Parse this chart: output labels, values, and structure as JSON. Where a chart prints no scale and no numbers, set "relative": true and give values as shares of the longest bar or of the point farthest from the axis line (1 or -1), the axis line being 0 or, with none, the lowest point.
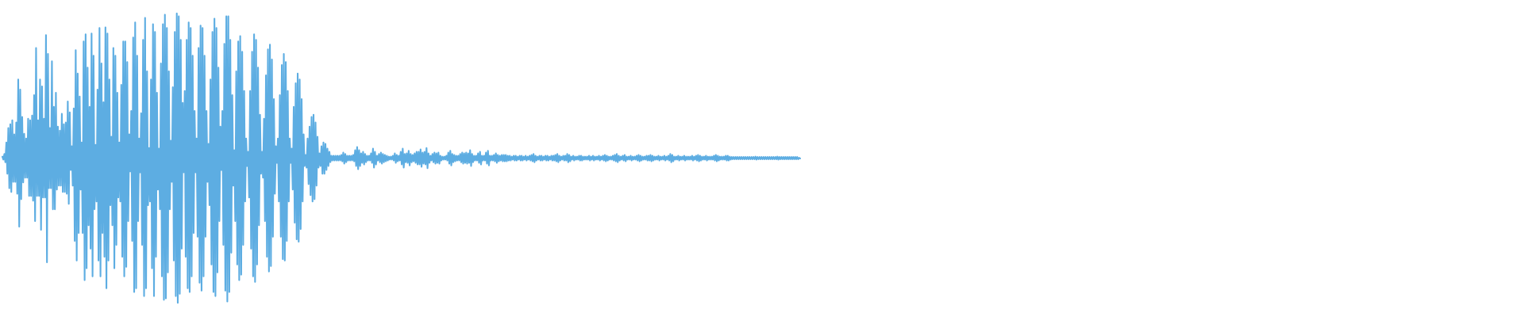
{
  "chart_data": {
    "type": "line",
    "relative": true,
    "color": "#5dade2",
    "categories": [
      null,
      null,
      null,
      null,
      null,
      null,
      null,
      null,
      null,
      null,
      null,
      null,
      null,
      null,
      null,
      null,
      null,
      null,
      null,
      null,
      null,
      null,
      null,
      null,
      null,
      null,
      null,
      null,
      null,
      null,
      null,
      null,
      null,
      null,
      null,
      null,
      null,
      null,
      null,
      null,
      null,
      null,
      null,
      null,
      null,
      null,
      null,
      null,
      null,
      null,
      null,
      null,
      null,
      null,
      null,
      null,
      null,
      null,
      null,
      null,
      null,
      null,
      null,
      null,
      null,
      null,
      null,
      null,
      null,
      null,
      null,
      null,
      null,
      null,
      null,
      null,
      null,
      null,
      null,
      null,
      null,
      null,
      null,
      null,
      null,
      null,
      null,
      null,
      null,
      null,
      null,
      null,
      null,
      null,
      null,
      null,
      null,
      null,
      null,
      null,
      null,
      null,
      null,
      null,
      null,
      null,
      null,
      null,
      null,
      null,
      null,
      null,
      null,
      null,
      null,
      null,
      null,
      null,
      null,
      null,
      null,
      null,
      null,
      null,
      null,
      null,
      null,
      null,
      null,
      null,
      null,
      null,
      null,
      null,
      null,
      null,
      null,
      null,
      null,
      null,
      null,
      null,
      null,
      null,
      null,
      null,
      null,
      null,
      null,
      null,
      null,
      null,
      null,
      null,
      null,
      null,
      null,
      null,
      null,
      null,
      null,
      null,
      null,
      null,
      null,
      null,
      null,
      null,
      null,
      null,
      null,
      null,
      null,
      null,
      null,
      null,
      null,
      null,
      null,
      null,
      null,
      null,
      null,
      null,
      null,
      null,
      null,
      null,
      null,
      null,
      null,
      null,
      null,
      null,
      null,
      null,
      null,
      null,
      null,
      null,
      null,
      null,
      null,
      null,
      null,
      null,
      null,
      null,
      null,
      null,
      null,
      null,
      null,
      null,
      null,
      null,
      null,
      null,
      null,
      null,
      null,
      null,
      null,
      null,
      null,
      null,
      null,
      null,
      null,
      null,
      null,
      null,
      null,
      null,
      null,
      null,
      null,
      null,
      null,
      null,
      null,
      null,
      null,
      null,
      null,
      null,
      null,
      null,
      null,
      null,
      null,
      null,
      null,
      null,
      null,
      null,
      null,
      null,
      null,
      null,
      null,
      null,
      null,
      null,
      null,
      null,
      null,
      null,
      null,
      null,
      null,
      null,
      null,
      null,
      null,
      null,
      null,
      null,
      null,
      null,
      null,
      null,
      null,
      null,
      null,
      null,
      null,
      null,
      null,
      null,
      null,
      null,
      null,
      null,
      null,
      null,
      null,
      null,
      null,
      null,
      null,
      null,
      null,
      null,
      null,
      null,
      null,
      null,
      null,
      null,
      null,
      null,
      null,
      null,
      null,
      null,
      null,
      null,
      null,
      null,
      null,
      null,
      null,
      null,
      null,
      null,
      null,
      null,
      null,
      null,
      null,
      null,
      null,
      null,
      null,
      null,
      null,
      null,
      null,
      null,
      null,
      null,
      null,
      null,
      null,
      null,
      null,
      null,
      null,
      null,
      null,
      null,
      null,
      null,
      null,
      null,
      null,
      null,
      null,
      null,
      null,
      null,
      null,
      null,
      null,
      null,
      null,
      null,
      null,
      null,
      null,
      null,
      null,
      null,
      null,
      null,
      null,
      null,
      null,
      null,
      null,
      null,
      null,
      null,
      null,
      null,
      null,
      null,
      null,
      null,
      null,
      null,
      null,
      null,
      null,
      null,
      null,
      null,
      null,
      null,
      null,
      null,
      null,
      null,
      null,
      null,
      null,
      null,
      null,
      null,
      null,
      null,
      null,
      null,
      null,
      null,
      null,
      null,
      null,
      null,
      null,
      null,
      null,
      null,
      null,
      null,
      null,
      null,
      null,
      null,
      null,
      null,
      null,
      null,
      null,
      null,
      null,
      null,
      null,
      null,
      null,
      null,
      null,
      null,
      null,
      null,
      null,
      null,
      null,
      null,
      null,
      null,
      null,
      null,
      null,
      null,
      null,
      null,
      null,
      null,
      null,
      null,
      null,
      null,
      null,
      null,
      null,
      null,
      null,
      null,
      null,
      null,
      null,
      null,
      null,
      null,
      null,
      null,
      null,
      null,
      null,
      null,
      null,
      null,
      null,
      null,
      null,
      null,
      null,
      null,
      null,
      null,
      null,
      null,
      null,
      null,
      null,
      null,
      null,
      null,
      null,
      null,
      null,
      null,
      null,
      null,
      null,
      null,
      null,
      null,
      null,
      null,
      null,
      null,
      null,
      null,
      null,
      null,
      null,
      null,
      null,
      null,
      null,
      null,
      null,
      null,
      null,
      null,
      null,
      null,
      null,
      null,
      null,
      null,
      null,
      null,
      null,
      null,
      null,
      null,
      null,
      null,
      null,
      null,
      null,
      null,
      null,
      null,
      null,
      null,
      null,
      null,
      null,
      null,
      null,
      null,
      null,
      null,
      null,
      null,
      null,
      null,
      null,
      null,
      null,
      null,
      null,
      null,
      null,
      null,
      null,
      null,
      null,
      null,
      null,
      null,
      null,
      null,
      null,
      null,
      null,
      null,
      null,
      null,
      null,
      null,
      null,
      null,
      null,
      null,
      null,
      null,
      null,
      null,
      null,
      null,
      null,
      null,
      null,
      null,
      null,
      null,
      null,
      null,
      null,
      null,
      null,
      null,
      null,
      null,
      null,
      null,
      null,
      null,
      null,
      null,
      null,
      null,
      null,
      null,
      null,
      null,
      null,
      null,
      null,
      null,
      null,
      null,
      null,
      null,
      null,
      null,
      null,
      null,
      null,
      null,
      null,
      null,
      null,
      null,
      null,
      null,
      null,
      null,
      null,
      null,
      null,
      null,
      null,
      null,
      null,
      null,
      null,
      null,
      null,
      null,
      null,
      null,
      null,
      null,
      null,
      null,
      null,
      null,
      null,
      null,
      null,
      null,
      null,
      null,
      null,
      null,
      null,
      null,
      null,
      null,
      null,
      null,
      null,
      null,
      null,
      null,
      null,
      null,
      null,
      null,
      null,
      null,
      null,
      null,
      null,
      null,
      null,
      null,
      null,
      null,
      null,
      null,
      null,
      null,
      null,
      null,
      null,
      null,
      null,
      null,
      null,
      null,
      null,
      null,
      null,
      null,
      null,
      null,
      null,
      null,
      null,
      null,
      null,
      null,
      null,
      null,
      null,
      null,
      null,
      null,
      null,
      null,
      null,
      null,
      null,
      null,
      null,
      null,
      null,
      null,
      null,
      null,
      null,
      null,
      null,
      null,
      null,
      null,
      null,
      null,
      null,
      null,
      null,
      null,
      null,
      null,
      null,
      null,
      null,
      null,
      null,
      null,
      null,
      null,
      null,
      null,
      null,
      null,
      null,
      null,
      null,
      null,
      null,
      null,
      null,
      null,
      null,
      null,
      null,
      null,
      null,
      null,
      null,
      null,
      null,
      null,
      null,
      null,
      null,
      null,
      null,
      null,
      null,
      null,
      null,
      null,
      null,
      null,
      null,
      null,
      null,
      null,
      null,
      null,
      null,
      null,
      null,
      null,
      null,
      null
    ],
    "values": [
      0.505,
      0.495,
      0.514,
      0.486,
      0.554,
      0.446,
      0.604,
      0.396,
      0.617,
      0.383,
      0.631,
      0.418,
      0.582,
      0.418,
      0.623,
      0.377,
      0.772,
      0.263,
      0.737,
      0.358,
      0.642,
      0.416,
      0.584,
      0.432,
      0.568,
      0.432,
      0.636,
      0.369,
      0.631,
      0.369,
      0.647,
      0.353,
      0.718,
      0.282,
      0.881,
      0.369,
      0.631,
      0.369,
      0.772,
      0.252,
      0.748,
      0.364,
      0.636,
      0.364,
      0.925,
      0.14,
      0.86,
      0.396,
      0.604,
      0.396,
      0.835,
      0.323,
      0.677,
      0.323,
      0.726,
      0.391,
      0.609,
      0.405,
      0.595,
      0.405,
      0.653,
      0.383,
      0.617,
      0.383,
      0.623,
      0.377,
      0.696,
      0.342,
      0.658,
      0.459,
      0.541,
      0.405,
      0.672,
      0.214,
      0.873,
      0.146,
      0.792,
      0.241,
      0.713,
      0.391,
      0.554,
      0.241,
      0.903,
      0.078,
      0.928,
      0.119,
      0.813,
      0.268,
      0.677,
      0.187,
      0.931,
      0.091,
      0.854,
      0.323,
      0.546,
      0.35,
      0.737,
      0.146,
      0.95,
      0.091,
      0.827,
      0.241,
      0.693,
      0.159,
      0.952,
      0.05,
      0.931,
      0.146,
      0.772,
      0.337,
      0.574,
      0.268,
      0.881,
      0.119,
      0.854,
      0.2,
      0.726,
      0.364,
      0.554,
      0.35,
      0.753,
      0.159,
      0.903,
      0.091,
      0.903,
      0.124,
      0.832,
      0.282,
      0.582,
      0.454,
      0.663,
      0.214,
      0.917,
      0.037,
      0.969,
      0.05,
      0.854,
      0.282,
      0.568,
      0.451,
      0.655,
      0.2,
      0.909,
      0.023,
      0.985,
      0.05,
      0.8,
      0.337,
      0.535,
      0.35,
      0.772,
      0.119,
      0.963,
      0.023,
      0.936,
      0.159,
      0.726,
      0.391,
      0.533,
      0.323,
      0.827,
      0.091,
      0.963,
      0.01,
      0.996,
      0.015,
      0.95,
      0.105,
      0.8,
      0.323,
      0.56,
      0.418,
      0.745,
      0.146,
      0.936,
      0.023,
      1.0,
      0.0,
      0.99,
      0.031,
      0.909,
      0.187,
      0.691,
      0.451,
      0.732,
      0.159,
      0.909,
      0.05,
      0.969,
      0.037,
      0.95,
      0.091,
      0.854,
      0.241,
      0.663,
      0.451,
      0.568,
      0.228,
      0.881,
      0.069,
      0.958,
      0.042,
      0.95,
      0.091,
      0.854,
      0.228,
      0.663,
      0.418,
      0.549,
      0.337,
      0.772,
      0.132,
      0.936,
      0.037,
      0.982,
      0.023,
      0.95,
      0.105,
      0.813,
      0.282,
      0.609,
      0.459,
      0.663,
      0.2,
      0.895,
      0.042,
      0.99,
      0.004,
      0.99,
      0.037,
      0.909,
      0.173,
      0.718,
      0.405,
      0.527,
      0.282,
      0.8,
      0.132,
      0.903,
      0.078,
      0.922,
      0.097,
      0.868,
      0.2,
      0.732,
      0.35,
      0.568,
      0.473,
      0.522,
      0.364,
      0.732,
      0.187,
      0.868,
      0.091,
      0.928,
      0.072,
      0.909,
      0.132,
      0.813,
      0.268,
      0.65,
      0.446,
      0.522,
      0.432,
      0.636,
      0.282,
      0.786,
      0.159,
      0.876,
      0.108,
      0.892,
      0.127,
      0.841,
      0.228,
      0.704,
      0.377,
      0.541,
      0.484,
      0.568,
      0.35,
      0.718,
      0.228,
      0.822,
      0.151,
      0.86,
      0.146,
      0.832,
      0.214,
      0.732,
      0.35,
      0.568,
      0.484,
      0.533,
      0.391,
      0.677,
      0.277,
      0.759,
      0.219,
      0.792,
      0.211,
      0.772,
      0.255,
      0.704,
      0.35,
      0.582,
      0.473,
      0.511,
      0.467,
      0.568,
      0.41,
      0.609,
      0.372,
      0.642,
      0.35,
      0.65,
      0.358,
      0.623,
      0.405,
      0.574,
      0.467,
      0.516,
      0.473,
      0.541,
      0.446,
      0.554,
      0.446,
      0.549,
      0.459,
      0.533,
      0.473,
      0.522,
      0.486,
      0.508,
      0.492,
      0.508,
      0.492,
      0.508,
      0.492,
      0.508,
      0.492,
      0.508,
      0.492,
      0.511,
      0.489,
      0.519,
      0.481,
      0.514,
      0.486,
      0.508,
      0.492,
      0.508,
      0.492,
      0.508,
      0.492,
      0.511,
      0.489,
      0.527,
      0.473,
      0.538,
      0.462,
      0.527,
      0.473,
      0.516,
      0.484,
      0.522,
      0.478,
      0.514,
      0.486,
      0.508,
      0.492,
      0.508,
      0.492,
      0.516,
      0.484,
      0.533,
      0.467,
      0.522,
      0.478,
      0.508,
      0.492,
      0.514,
      0.486,
      0.519,
      0.481,
      0.514,
      0.486,
      0.511,
      0.489,
      0.508,
      0.492,
      0.505,
      0.495,
      0.505,
      0.495,
      0.508,
      0.492,
      0.516,
      0.484,
      0.511,
      0.489,
      0.508,
      0.492,
      0.522,
      0.478,
      0.533,
      0.467,
      0.514,
      0.486,
      0.516,
      0.484,
      0.525,
      0.475,
      0.514,
      0.486,
      0.511,
      0.489,
      0.516,
      0.484,
      0.522,
      0.478,
      0.522,
      0.478,
      0.53,
      0.47,
      0.519,
      0.481,
      0.522,
      0.478,
      0.535,
      0.465,
      0.516,
      0.484,
      0.508,
      0.492,
      0.514,
      0.486,
      0.519,
      0.481,
      0.516,
      0.484,
      0.519,
      0.481,
      0.508,
      0.492,
      0.505,
      0.495,
      0.505,
      0.495,
      0.508,
      0.492,
      0.519,
      0.481,
      0.525,
      0.475,
      0.514,
      0.486,
      0.511,
      0.489,
      0.508,
      0.492,
      0.508,
      0.492,
      0.514,
      0.486,
      0.519,
      0.481,
      0.516,
      0.484,
      0.519,
      0.481,
      0.516,
      0.484,
      0.527,
      0.473,
      0.514,
      0.486,
      0.508,
      0.492,
      0.508,
      0.492,
      0.516,
      0.484,
      0.522,
      0.478,
      0.508,
      0.492,
      0.508,
      0.492,
      0.519,
      0.481,
      0.525,
      0.475,
      0.508,
      0.492,
      0.508,
      0.492,
      0.511,
      0.489,
      0.516,
      0.484,
      0.511,
      0.489,
      0.508,
      0.492,
      0.511,
      0.489,
      0.511,
      0.489,
      0.511,
      0.489,
      0.508,
      0.492,
      0.508,
      0.492,
      0.505,
      0.495,
      0.508,
      0.492,
      0.508,
      0.492,
      0.505,
      0.495,
      0.508,
      0.492,
      0.508,
      0.492,
      0.505,
      0.495,
      0.508,
      0.492,
      0.505,
      0.495,
      0.508,
      0.492,
      0.511,
      0.489,
      0.514,
      0.486,
      0.508,
      0.492,
      0.505,
      0.495,
      0.508,
      0.492,
      0.508,
      0.492,
      0.505,
      0.495,
      0.508,
      0.492,
      0.508,
      0.492,
      0.505,
      0.495,
      0.508,
      0.492,
      0.508,
      0.492,
      0.511,
      0.489,
      0.514,
      0.486,
      0.508,
      0.492,
      0.505,
      0.495,
      0.508,
      0.492,
      0.508,
      0.492,
      0.514,
      0.486,
      0.511,
      0.489,
      0.505,
      0.495,
      0.508,
      0.492,
      0.505,
      0.495,
      0.505,
      0.495,
      0.508,
      0.492,
      0.508,
      0.492,
      0.505,
      0.495,
      0.505,
      0.495,
      0.505,
      0.495,
      0.508,
      0.492,
      0.505,
      0.495,
      0.508,
      0.492,
      0.505,
      0.495,
      0.505,
      0.495,
      0.508,
      0.492,
      0.505,
      0.495,
      0.508,
      0.492,
      0.511,
      0.489,
      0.508,
      0.492,
      0.505,
      0.495,
      0.505,
      0.495,
      0.508,
      0.492,
      0.511,
      0.489,
      0.514,
      0.486,
      0.508,
      0.492,
      0.505,
      0.495,
      0.508,
      0.492,
      0.511,
      0.489,
      0.505,
      0.495,
      0.505,
      0.495,
      0.508,
      0.492,
      0.505,
      0.495,
      0.505,
      0.495,
      0.508,
      0.492,
      0.511,
      0.489,
      0.508,
      0.492,
      0.505,
      0.495,
      0.505,
      0.495,
      0.508,
      0.492,
      0.508,
      0.492,
      0.511,
      0.489,
      0.508,
      0.492,
      0.505,
      0.495,
      0.505,
      0.495,
      0.508,
      0.492,
      0.505,
      0.495,
      0.505,
      0.495,
      0.508,
      0.492,
      0.505,
      0.495,
      0.508,
      0.492,
      0.514,
      0.486,
      0.511,
      0.489,
      0.505,
      0.495,
      0.505,
      0.495,
      0.508,
      0.492,
      0.505,
      0.495,
      0.505,
      0.495,
      0.508,
      0.492,
      0.505,
      0.495,
      0.505,
      0.495,
      0.505,
      0.495,
      0.508,
      0.492,
      0.505,
      0.495,
      0.508,
      0.492,
      0.511,
      0.489,
      0.508,
      0.492,
      0.505,
      0.495,
      0.505,
      0.495,
      0.508,
      0.492,
      0.505,
      0.495,
      0.505,
      0.495,
      0.505,
      0.495,
      0.508,
      0.492,
      0.511,
      0.489,
      0.508,
      0.492,
      0.505,
      0.495,
      0.505,
      0.495,
      0.505,
      0.495,
      0.508,
      0.492,
      0.508,
      0.492,
      0.505,
      0.495,
      0.504,
      0.496,
      0.504,
      0.496,
      0.504,
      0.496,
      0.504,
      0.496,
      0.504,
      0.496,
      0.504,
      0.496,
      0.504,
      0.496,
      0.504,
      0.496,
      0.504,
      0.496,
      0.504,
      0.496,
      0.504,
      0.496,
      0.504,
      0.496,
      0.505,
      0.495,
      0.504,
      0.496,
      0.504,
      0.496,
      0.504,
      0.496,
      0.504,
      0.496,
      0.504,
      0.496,
      0.504,
      0.496,
      0.504,
      0.496,
      0.504,
      0.496,
      0.504,
      0.496,
      0.504,
      0.496,
      0.505,
      0.495,
      0.504,
      0.496,
      0.504,
      0.496,
      0.504,
      0.496,
      0.504,
      0.496,
      0.504,
      0.496,
      0.504,
      0.496,
      0.504,
      0.496,
      0.504,
      0.496,
      0.504,
      0.496,
      0.504,
      0.496,
      0.501,
      0.499
    ]
  }
}
